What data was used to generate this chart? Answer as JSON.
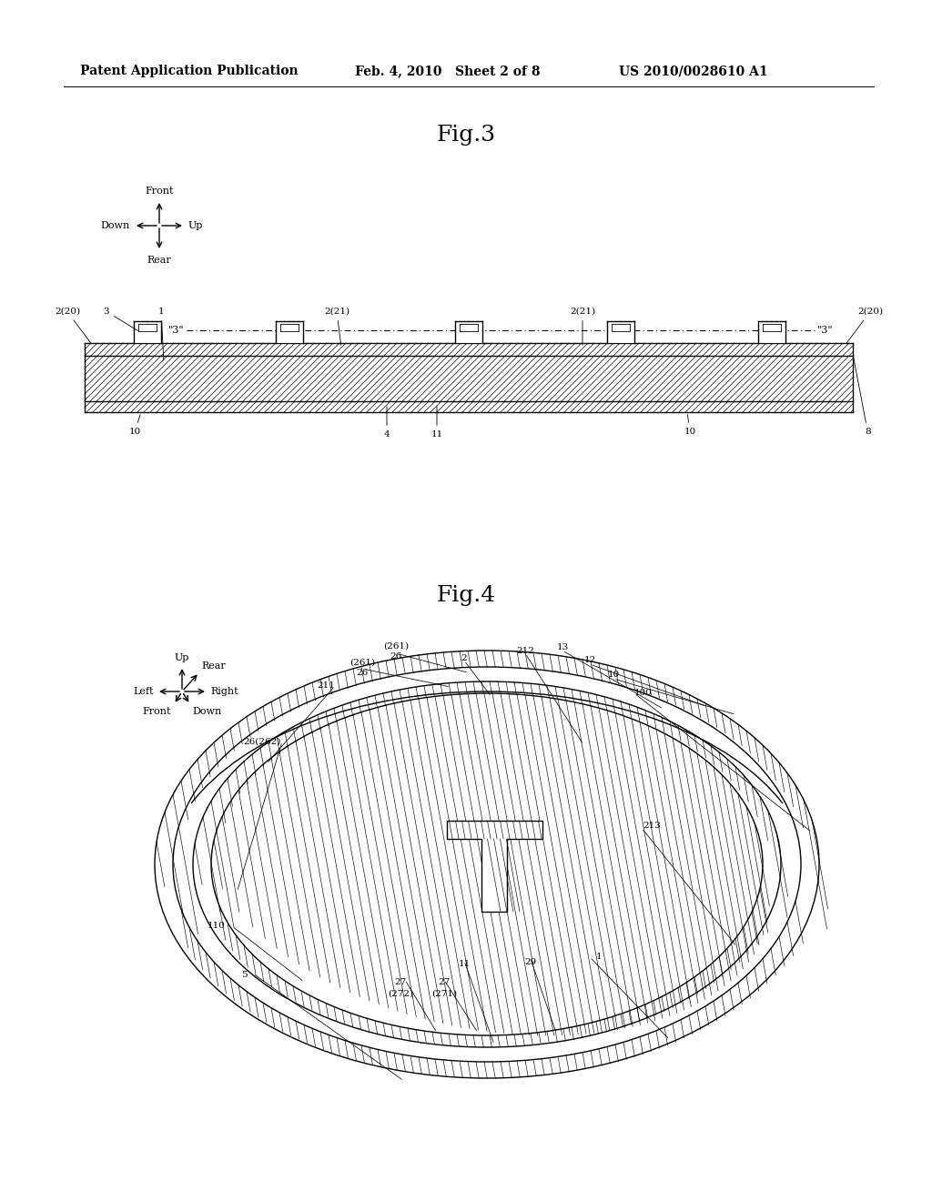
{
  "bg_color": "#ffffff",
  "header_left": "Patent Application Publication",
  "header_mid": "Feb. 4, 2010   Sheet 2 of 8",
  "header_right": "US 2010/0028610 A1",
  "fig3_title": "Fig.3",
  "fig4_title": "Fig.4",
  "line_color": "#000000",
  "hatch_color": "#000000",
  "label_fontsize": 9,
  "title_fontsize": 18,
  "header_fontsize": 10
}
